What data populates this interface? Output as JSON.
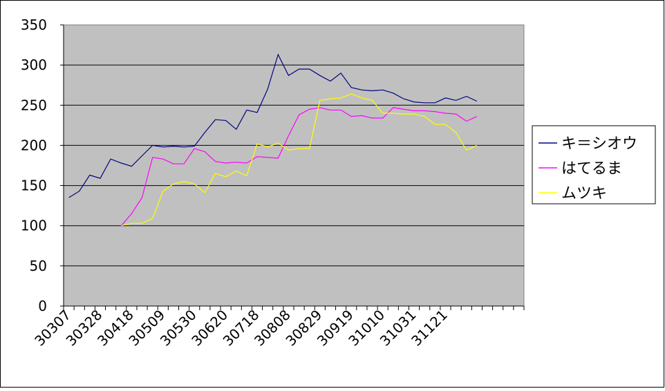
{
  "chart_data": {
    "type": "line",
    "title": "",
    "xlabel": "",
    "ylabel": "",
    "ylim": [
      0,
      350
    ],
    "yticks": [
      0,
      50,
      100,
      150,
      200,
      250,
      300,
      350
    ],
    "grid": "horizontal",
    "plot_background": "#c0c0c0",
    "legend_position": "right",
    "xtick_labels": [
      "30307",
      "30328",
      "30418",
      "30509",
      "30530",
      "30620",
      "30718",
      "30808",
      "30829",
      "30919",
      "31010",
      "31031",
      "31121"
    ],
    "num_points": 44,
    "series": [
      {
        "name": "キ＝シオウ",
        "color": "#000080",
        "start_index": 0,
        "values": [
          135,
          143,
          163,
          159,
          183,
          178,
          174,
          187,
          200,
          198,
          199,
          198,
          199,
          216,
          232,
          231,
          220,
          244,
          241,
          270,
          313,
          287,
          295,
          295,
          287,
          280,
          290,
          272,
          269,
          268,
          269,
          265,
          258,
          254,
          253,
          253,
          259,
          256,
          261,
          255
        ]
      },
      {
        "name": "はてるま",
        "color": "#ff00ff",
        "start_index": 5,
        "values": [
          100,
          115,
          135,
          185,
          183,
          177,
          177,
          196,
          192,
          180,
          178,
          179,
          178,
          186,
          185,
          184,
          212,
          238,
          245,
          247,
          244,
          244,
          236,
          237,
          234,
          234,
          247,
          245,
          243,
          243,
          242,
          240,
          239,
          230,
          236
        ]
      },
      {
        "name": "ムツキ",
        "color": "#ffff00",
        "start_index": 5,
        "values": [
          100,
          103,
          103,
          109,
          143,
          152,
          155,
          152,
          141,
          165,
          161,
          168,
          162,
          202,
          198,
          203,
          194,
          196,
          196,
          256,
          258,
          259,
          264,
          259,
          256,
          240,
          240,
          239,
          239,
          236,
          226,
          226,
          216,
          194,
          200
        ]
      }
    ]
  }
}
